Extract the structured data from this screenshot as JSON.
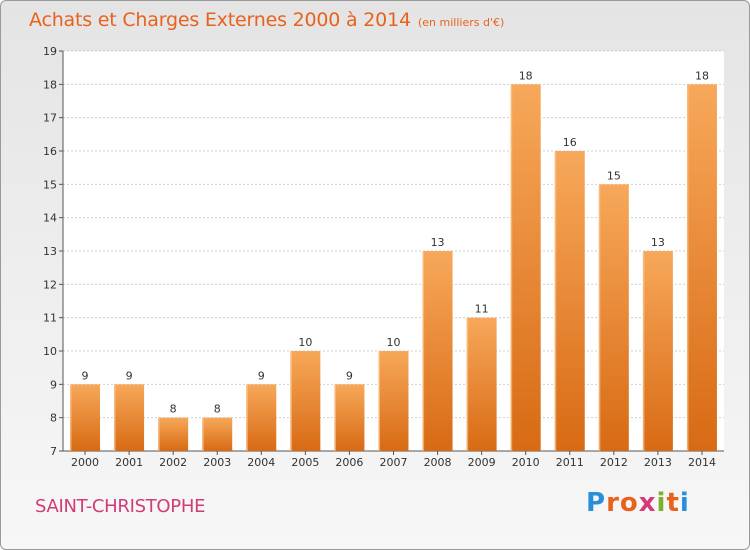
{
  "header": {
    "title": "Achats et Charges Externes 2000 à 2014",
    "subtitle": "(en milliers d'€)"
  },
  "footer": {
    "commune": "SAINT-CHRISTOPHE",
    "brand": "Proxiti",
    "brand_letters": [
      "P",
      "r",
      "o",
      "x",
      "i",
      "t",
      "i"
    ],
    "brand_colors": [
      "#2a8fd8",
      "#e8621e",
      "#e8621e",
      "#d23a7a",
      "#7ab02c",
      "#e8621e",
      "#2a8fd8"
    ]
  },
  "colors": {
    "bar_top": "#f7a85a",
    "bar_bottom": "#d86a14",
    "title": "#e8621e",
    "commune": "#d23a7a"
  },
  "chart_data": {
    "type": "bar",
    "title": "Achats et Charges Externes 2000 à 2014",
    "subtitle": "(en milliers d'€)",
    "categories": [
      "2000",
      "2001",
      "2002",
      "2003",
      "2004",
      "2005",
      "2006",
      "2007",
      "2008",
      "2009",
      "2010",
      "2011",
      "2012",
      "2013",
      "2014"
    ],
    "values": [
      9,
      9,
      8,
      8,
      9,
      10,
      9,
      10,
      13,
      11,
      18,
      16,
      15,
      13,
      18
    ],
    "ylim": [
      7,
      19
    ],
    "yticks": [
      7,
      8,
      9,
      10,
      11,
      12,
      13,
      14,
      15,
      16,
      17,
      18,
      19
    ],
    "grid": true,
    "data_labels": true
  }
}
